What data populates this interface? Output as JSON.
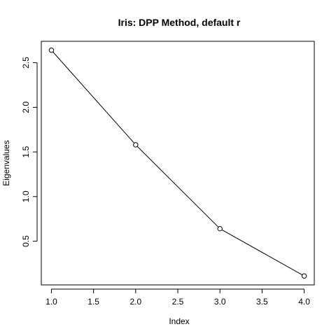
{
  "chart_data": {
    "type": "line",
    "title": "Iris: DPP Method, default r",
    "xlabel": "Index",
    "ylabel": "Eigenvalues",
    "x": [
      1,
      2,
      3,
      4
    ],
    "series": [
      {
        "values": [
          2.64,
          1.58,
          0.64,
          0.11
        ]
      }
    ],
    "xlim": [
      0.88,
      4.12
    ],
    "ylim": [
      0.01,
      2.74
    ],
    "xticks": [
      "1.0",
      "1.5",
      "2.0",
      "2.5",
      "3.0",
      "3.5",
      "4.0"
    ],
    "yticks": [
      "0.5",
      "1.0",
      "1.5",
      "2.0",
      "2.5"
    ],
    "marker": "open-circle",
    "grid": false,
    "legend": false
  }
}
